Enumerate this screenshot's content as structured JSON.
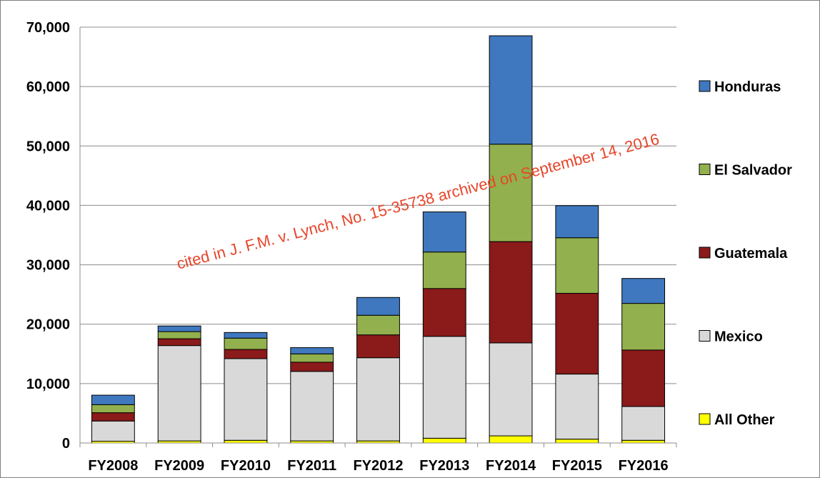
{
  "chart_data": {
    "type": "bar",
    "stacked": true,
    "categories": [
      "FY2008",
      "FY2009",
      "FY2010",
      "FY2011",
      "FY2012",
      "FY2013",
      "FY2014",
      "FY2015",
      "FY2016"
    ],
    "series": [
      {
        "name": "All Other",
        "color": "#ffff00",
        "values": [
          300,
          350,
          450,
          350,
          350,
          800,
          1200,
          650,
          450
        ]
      },
      {
        "name": "Mexico",
        "color": "#d9d9d9",
        "values": [
          3400,
          16050,
          13750,
          11700,
          14000,
          17150,
          15650,
          10950,
          5700
        ]
      },
      {
        "name": "Guatemala",
        "color": "#8b1a1a",
        "values": [
          1400,
          1150,
          1550,
          1550,
          3850,
          8050,
          17050,
          13600,
          9500
        ]
      },
      {
        "name": "El Salvador",
        "color": "#92b04d",
        "values": [
          1350,
          1200,
          1900,
          1400,
          3300,
          6150,
          16400,
          9350,
          7850
        ]
      },
      {
        "name": "Honduras",
        "color": "#3f78bf",
        "values": [
          1600,
          950,
          950,
          1050,
          3000,
          6750,
          18250,
          5400,
          4200
        ]
      }
    ],
    "ylim": [
      0,
      70000
    ],
    "y_ticks": [
      "0",
      "10,000",
      "20,000",
      "30,000",
      "40,000",
      "50,000",
      "60,000",
      "70,000"
    ],
    "grid": true,
    "legend_position": "right",
    "legend_order": [
      "Honduras",
      "El Salvador",
      "Guatemala",
      "Mexico",
      "All Other"
    ],
    "annotations": [
      {
        "text": "cited in J. F.M. v. Lynch, No. 15-35738 archived on September 14, 2016"
      }
    ]
  }
}
